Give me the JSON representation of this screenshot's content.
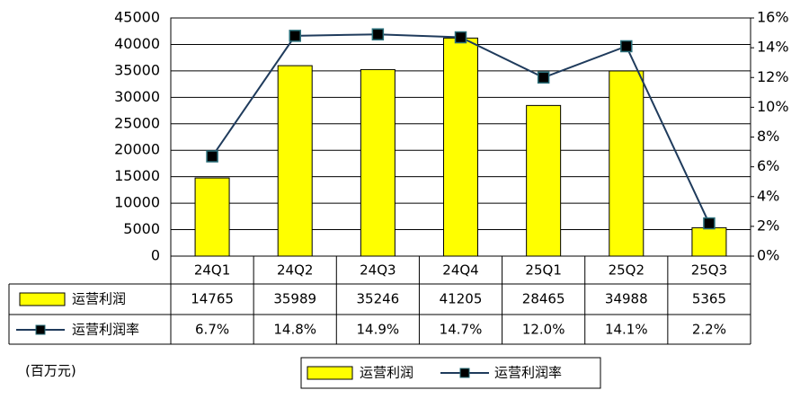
{
  "chart_data": {
    "type": "bar-line",
    "unit_note": "(百万元)",
    "categories": [
      "24Q1",
      "24Q2",
      "24Q3",
      "24Q4",
      "25Q1",
      "25Q2",
      "25Q3"
    ],
    "series": [
      {
        "name": "运营利润",
        "type": "bar",
        "color": "#ffff00",
        "values": [
          14765,
          35989,
          35246,
          41205,
          28465,
          34988,
          5365
        ]
      },
      {
        "name": "运营利润率",
        "type": "line",
        "axis": "y2",
        "color": "#1f3b5c",
        "marker_color": "#000000",
        "values": [
          6.7,
          14.8,
          14.9,
          14.7,
          12.0,
          14.1,
          2.2
        ],
        "value_labels": [
          "6.7%",
          "14.8%",
          "14.9%",
          "14.7%",
          "12.0%",
          "14.1%",
          "2.2%"
        ]
      }
    ],
    "ylim": [
      0,
      45000
    ],
    "yticks": [
      0,
      5000,
      10000,
      15000,
      20000,
      25000,
      30000,
      35000,
      40000,
      45000
    ],
    "y2lim": [
      0,
      16
    ],
    "y2ticks": [
      {
        "value": 0,
        "label": "0%"
      },
      {
        "value": 2,
        "label": "2%"
      },
      {
        "value": 4,
        "label": "4%"
      },
      {
        "value": 6,
        "label": "6%"
      },
      {
        "value": 8,
        "label": "8%"
      },
      {
        "value": 10,
        "label": "10%"
      },
      {
        "value": 12,
        "label": "12%"
      },
      {
        "value": 14,
        "label": "14%"
      },
      {
        "value": 16,
        "label": "16%"
      }
    ],
    "grid": true
  }
}
